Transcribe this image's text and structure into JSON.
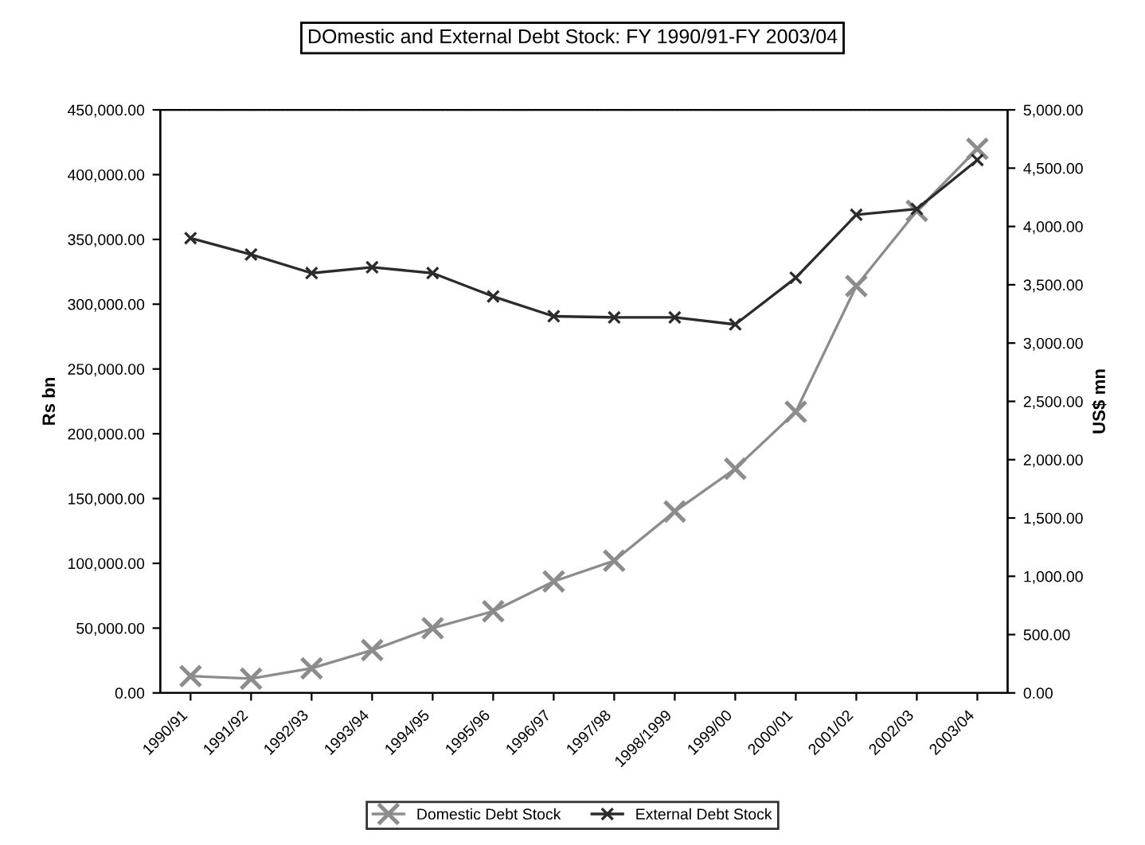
{
  "chart_data": {
    "type": "line",
    "title": "DOmestic and External Debt Stock: FY 1990/91-FY 2003/04",
    "ylabel": "Rs bn",
    "y2label": "US$ mn",
    "categories": [
      "1990/91",
      "1991/92",
      "1992/93",
      "1993/94",
      "1994/95",
      "1995/96",
      "1996/97",
      "1997/98",
      "1998/1999",
      "1999/00",
      "2000/01",
      "2001/02",
      "2002/03",
      "2003/04"
    ],
    "series": [
      {
        "name": "Domestic Debt Stock",
        "color": "#8c8c8c",
        "marker": "cross",
        "values": [
          13000,
          11000,
          19000,
          33000,
          50000,
          63000,
          86000,
          102000,
          140000,
          173000,
          217000,
          314000,
          372000,
          420000
        ]
      },
      {
        "name": "External Debt Stock",
        "color": "#2b2b2b",
        "marker": "cross",
        "axis": "y2",
        "values": [
          3900,
          3760,
          3600,
          3650,
          3600,
          3400,
          3230,
          3220,
          3220,
          3160,
          3560,
          4100,
          4150,
          4570
        ]
      }
    ],
    "ylim": [
      0,
      450000
    ],
    "yticks": [
      {
        "value": 0,
        "label": "0.00"
      },
      {
        "value": 50000,
        "label": "50,000.00"
      },
      {
        "value": 100000,
        "label": "100,000.00"
      },
      {
        "value": 150000,
        "label": "150,000.00"
      },
      {
        "value": 200000,
        "label": "200,000.00"
      },
      {
        "value": 250000,
        "label": "250,000.00"
      },
      {
        "value": 300000,
        "label": "300,000.00"
      },
      {
        "value": 350000,
        "label": "350,000.00"
      },
      {
        "value": 400000,
        "label": "400,000.00"
      },
      {
        "value": 450000,
        "label": "450,000.00"
      }
    ],
    "y2lim": [
      0,
      5000
    ],
    "y2ticks": [
      {
        "value": 0,
        "label": "0.00"
      },
      {
        "value": 500,
        "label": "500.00"
      },
      {
        "value": 1000,
        "label": "1,000.00"
      },
      {
        "value": 1500,
        "label": "1,500.00"
      },
      {
        "value": 2000,
        "label": "2,000.00"
      },
      {
        "value": 2500,
        "label": "2,500.00"
      },
      {
        "value": 3000,
        "label": "3,000.00"
      },
      {
        "value": 3500,
        "label": "3,500.00"
      },
      {
        "value": 4000,
        "label": "4,000.00"
      },
      {
        "value": 4500,
        "label": "4,500.00"
      },
      {
        "value": 5000,
        "label": "5,000.00"
      }
    ],
    "grid": false,
    "legend": "bottom",
    "line_style": "solid"
  }
}
